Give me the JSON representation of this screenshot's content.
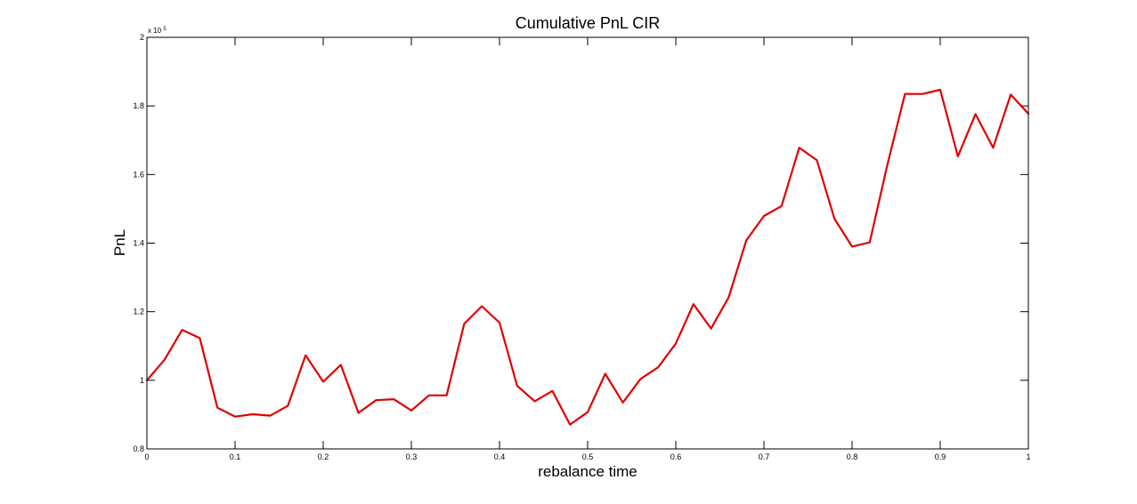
{
  "chart_data": {
    "type": "line",
    "title": "Cumulative PnL CIR",
    "xlabel": "rebalance time",
    "ylabel": "PnL",
    "xlim": [
      0,
      1
    ],
    "ylim": [
      80000,
      200000
    ],
    "y_multiplier": {
      "base": "x 10",
      "exponent": "5"
    },
    "x_ticks": [
      0,
      0.1,
      0.2,
      0.3,
      0.4,
      0.5,
      0.6,
      0.7,
      0.8,
      0.9,
      1
    ],
    "x_tick_labels": [
      "0",
      "0.1",
      "0.2",
      "0.3",
      "0.4",
      "0.5",
      "0.6",
      "0.7",
      "0.8",
      "0.9",
      "1"
    ],
    "y_ticks": [
      80000,
      100000,
      120000,
      140000,
      160000,
      180000,
      200000
    ],
    "y_tick_labels": [
      "0.8",
      "1",
      "1.2",
      "1.4",
      "1.6",
      "1.8",
      "2"
    ],
    "grid": false,
    "line_color": "#e00000",
    "series": [
      {
        "x": [
          0,
          0.02,
          0.04,
          0.06,
          0.08,
          0.1,
          0.12,
          0.14,
          0.16,
          0.18,
          0.2,
          0.22,
          0.24,
          0.26,
          0.28,
          0.3,
          0.32,
          0.34,
          0.36,
          0.38,
          0.4,
          0.42,
          0.44,
          0.46,
          0.48,
          0.5,
          0.52,
          0.54,
          0.56,
          0.58,
          0.6,
          0.62,
          0.64,
          0.66,
          0.68,
          0.7,
          0.72,
          0.74,
          0.76,
          0.78,
          0.8,
          0.82,
          0.84,
          0.86,
          0.88,
          0.9,
          0.92,
          0.94,
          0.96,
          0.98,
          1.0
        ],
        "y": [
          100000,
          106000,
          114700,
          112300,
          92000,
          89400,
          90100,
          89700,
          92600,
          107300,
          99600,
          104500,
          90500,
          94200,
          94500,
          91200,
          95600,
          95600,
          116500,
          121600,
          116800,
          98400,
          93900,
          96900,
          87100,
          90700,
          101900,
          93500,
          100400,
          103800,
          110700,
          122200,
          115100,
          124200,
          140800,
          147900,
          150800,
          167800,
          164200,
          147100,
          139000,
          140200,
          162800,
          183500,
          183500,
          184700,
          165300,
          177600,
          167800,
          183300,
          177700
        ]
      }
    ]
  }
}
